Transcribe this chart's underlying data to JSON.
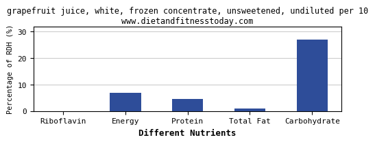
{
  "title": "grapefruit juice, white, frozen concentrate, unsweetened, undiluted per 10",
  "subtitle": "www.dietandfitnesstoday.com",
  "categories": [
    "Riboflavin",
    "Energy",
    "Protein",
    "Total Fat",
    "Carbohydrate"
  ],
  "values": [
    0,
    7,
    4.5,
    1,
    27
  ],
  "bar_color": "#2e4d99",
  "xlabel": "Different Nutrients",
  "ylabel": "Percentage of RDH (%)",
  "ylim": [
    0,
    32
  ],
  "yticks": [
    0,
    10,
    20,
    30
  ],
  "title_fontsize": 8.5,
  "subtitle_fontsize": 8.5,
  "tick_fontsize": 8,
  "xlabel_fontsize": 9,
  "ylabel_fontsize": 7.5,
  "background_color": "#ffffff",
  "grid_color": "#cccccc",
  "border_color": "#000000"
}
